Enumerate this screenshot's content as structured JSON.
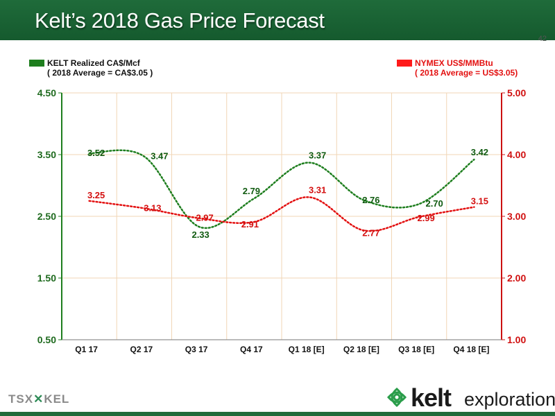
{
  "title": "Kelt’s 2018 Gas Price Forecast",
  "page_number": "42",
  "legend": {
    "kelt": {
      "label": "KELT Realized CA$/Mcf",
      "sub": "( 2018 Average = CA$3.05 )",
      "color": "#1e7e1e"
    },
    "nymex": {
      "label": "NYMEX US$/MMBtu",
      "sub": "( 2018 Average = US$3.05)",
      "color": "#e31010"
    }
  },
  "chart_data": {
    "type": "line",
    "categories": [
      "Q1 17",
      "Q2 17",
      "Q3 17",
      "Q4 17",
      "Q1 18 [E]",
      "Q2 18 [E]",
      "Q3 18 [E]",
      "Q4 18 [E]"
    ],
    "series": [
      {
        "name": "KELT Realized CA$/Mcf",
        "axis": "left",
        "color": "#1e7e1e",
        "values": [
          3.52,
          3.47,
          2.33,
          2.79,
          3.37,
          2.76,
          2.7,
          3.42
        ],
        "labels": [
          "3.52",
          "3.47",
          "2.33",
          "2.79",
          "3.37",
          "2.76",
          "2.70",
          "3.42"
        ]
      },
      {
        "name": "NYMEX US$/MMBtu",
        "axis": "right",
        "color": "#e31010",
        "values": [
          3.25,
          3.13,
          2.97,
          2.91,
          3.31,
          2.77,
          2.99,
          3.15
        ],
        "labels": [
          "3.25",
          "3.13",
          "2.97",
          "2.91",
          "3.31",
          "2.77",
          "2.99",
          "3.15"
        ]
      }
    ],
    "y_left": {
      "ylim": [
        0.5,
        4.5
      ],
      "ticks": [
        "0.50",
        "1.50",
        "2.50",
        "3.50",
        "4.50"
      ]
    },
    "y_right": {
      "ylim": [
        1.0,
        5.0
      ],
      "ticks": [
        "1.00",
        "2.00",
        "3.00",
        "4.00",
        "5.00"
      ]
    },
    "grid": true
  },
  "footer": {
    "exchange": "TSX",
    "ticker": "KEL",
    "brand_word1": "kelt",
    "brand_word2": "exploration"
  }
}
